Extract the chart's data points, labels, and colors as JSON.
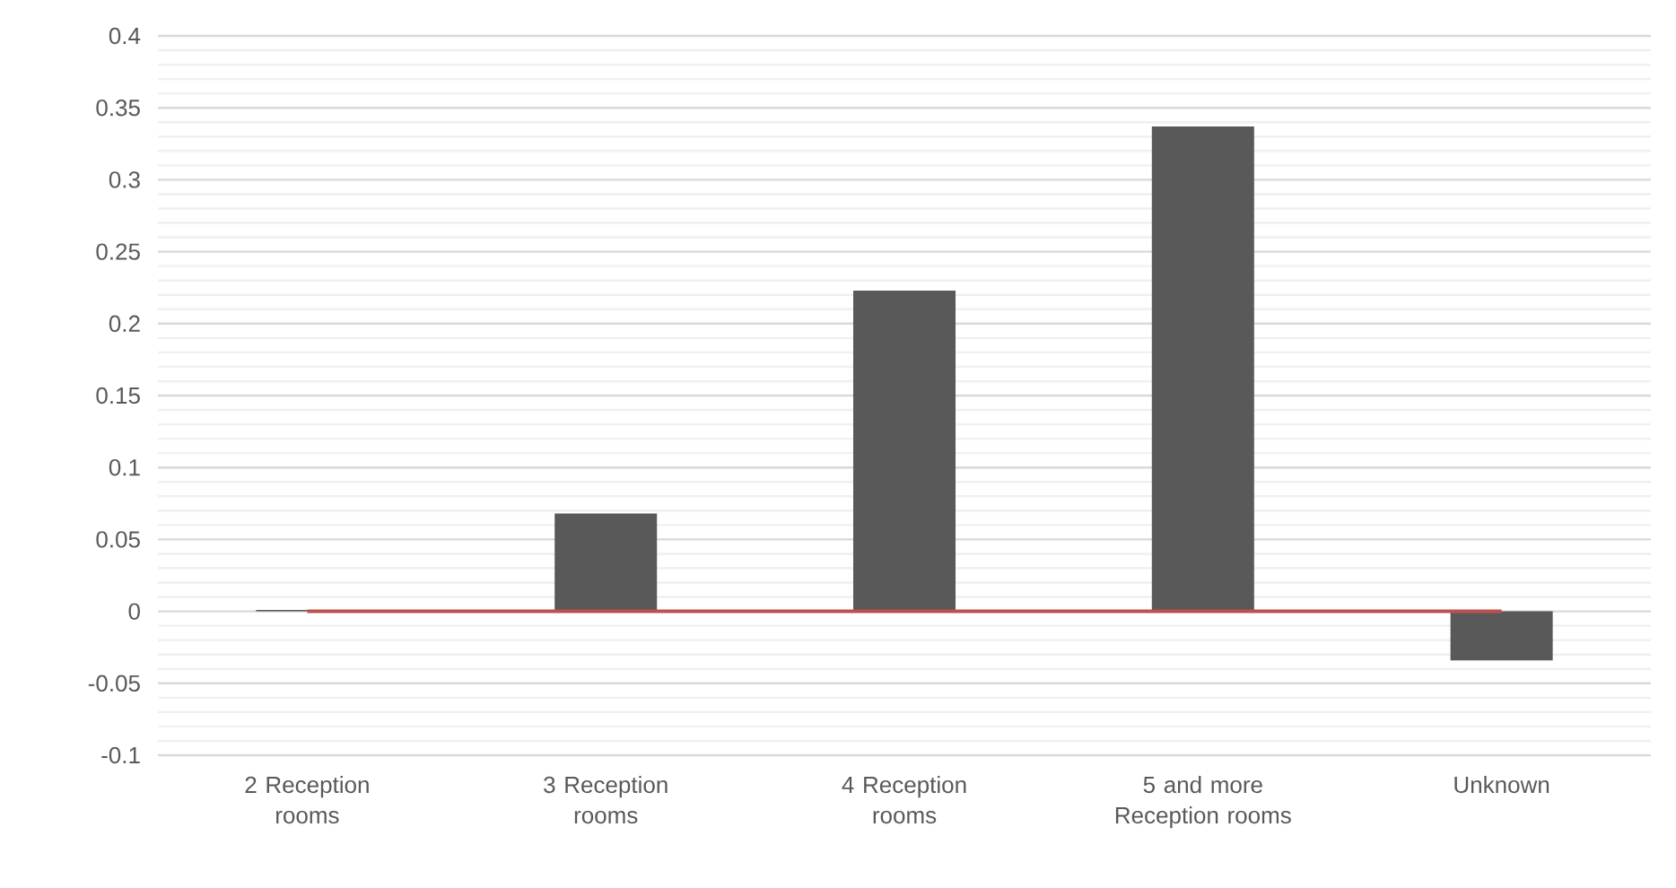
{
  "chart_data": {
    "type": "bar",
    "categories": [
      "2 Reception rooms",
      "3 Reception rooms",
      "4 Reception rooms",
      "5 and more Reception rooms",
      "Unknown"
    ],
    "series": [
      {
        "color": "#595959",
        "values": [
          0.001,
          0.068,
          0.223,
          0.337,
          -0.034
        ]
      },
      {
        "type": "line",
        "color": "#c0504d",
        "values": [
          0,
          0,
          0,
          0,
          0
        ]
      }
    ],
    "ylim": [
      -0.1,
      0.4
    ],
    "yticks": [
      -0.1,
      -0.05,
      0,
      0.05,
      0.1,
      0.15,
      0.2,
      0.25,
      0.3,
      0.35,
      0.4
    ],
    "grid": true
  }
}
